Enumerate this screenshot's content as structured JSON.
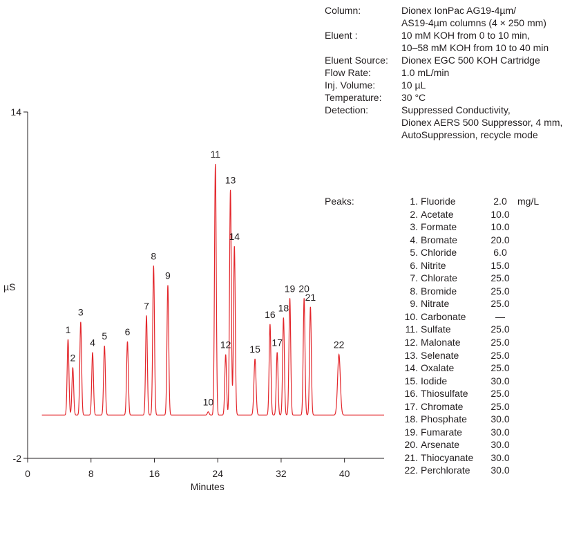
{
  "chart_data": {
    "type": "line",
    "xlabel": "Minutes",
    "ylabel": "µS",
    "xlim": [
      0,
      45
    ],
    "ylim": [
      -2,
      14
    ],
    "x_ticks": [
      "0",
      "8",
      "16",
      "24",
      "32",
      "40"
    ],
    "y_ticks": [
      "14",
      "-2"
    ],
    "baseline": 0.0,
    "line_color": "#e3262b",
    "peaks": [
      {
        "label": "1",
        "t": 5.1,
        "h": 3.5
      },
      {
        "label": "2",
        "t": 5.7,
        "h": 2.2
      },
      {
        "label": "3",
        "t": 6.7,
        "h": 4.3
      },
      {
        "label": "4",
        "t": 8.2,
        "h": 2.9
      },
      {
        "label": "5",
        "t": 9.7,
        "h": 3.2
      },
      {
        "label": "6",
        "t": 12.6,
        "h": 3.4
      },
      {
        "label": "7",
        "t": 15.0,
        "h": 4.6
      },
      {
        "label": "8",
        "t": 15.9,
        "h": 6.9
      },
      {
        "label": "9",
        "t": 17.7,
        "h": 6.0
      },
      {
        "label": "10",
        "t": 22.8,
        "h": 0.15
      },
      {
        "label": "11",
        "t": 23.7,
        "h": 11.6
      },
      {
        "label": "12",
        "t": 25.0,
        "h": 2.8
      },
      {
        "label": "13",
        "t": 25.6,
        "h": 10.4
      },
      {
        "label": "14",
        "t": 26.1,
        "h": 7.8
      },
      {
        "label": "15",
        "t": 28.7,
        "h": 2.6
      },
      {
        "label": "16",
        "t": 30.6,
        "h": 4.2
      },
      {
        "label": "17",
        "t": 31.5,
        "h": 2.9
      },
      {
        "label": "18",
        "t": 32.3,
        "h": 4.5
      },
      {
        "label": "19",
        "t": 33.1,
        "h": 5.4
      },
      {
        "label": "20",
        "t": 34.9,
        "h": 5.4
      },
      {
        "label": "21",
        "t": 35.7,
        "h": 5.0
      },
      {
        "label": "22",
        "t": 39.3,
        "h": 2.8
      }
    ]
  },
  "conditions": [
    {
      "label": "Column:",
      "values": [
        "Dionex IonPac AG19-4µm/",
        "AS19-4µm columns (4 × 250 mm)"
      ]
    },
    {
      "label": "Eluent :",
      "values": [
        "10 mM KOH from 0 to 10 min,",
        "10–58 mM KOH from 10 to 40 min"
      ]
    },
    {
      "label": "Eluent Source:",
      "values": [
        "Dionex EGC 500 KOH Cartridge"
      ]
    },
    {
      "label": "Flow Rate:",
      "values": [
        "1.0 mL/min"
      ]
    },
    {
      "label": "Inj. Volume:",
      "values": [
        "10 µL"
      ]
    },
    {
      "label": "Temperature:",
      "values": [
        "30 °C"
      ]
    },
    {
      "label": "Detection:",
      "values": [
        "Suppressed Conductivity,",
        "Dionex AERS 500 Suppressor, 4 mm,",
        "AutoSuppression, recycle mode"
      ]
    }
  ],
  "peak_table": {
    "label": "Peaks:",
    "unit": "mg/L",
    "items": [
      {
        "num": "1.",
        "name": "Fluoride",
        "conc": "2.0"
      },
      {
        "num": "2.",
        "name": "Acetate",
        "conc": "10.0"
      },
      {
        "num": "3.",
        "name": "Formate",
        "conc": "10.0"
      },
      {
        "num": "4.",
        "name": "Bromate",
        "conc": "20.0"
      },
      {
        "num": "5.",
        "name": "Chloride",
        "conc": "6.0"
      },
      {
        "num": "6.",
        "name": "Nitrite",
        "conc": "15.0"
      },
      {
        "num": "7.",
        "name": "Chlorate",
        "conc": "25.0"
      },
      {
        "num": "8.",
        "name": "Bromide",
        "conc": "25.0"
      },
      {
        "num": "9.",
        "name": "Nitrate",
        "conc": "25.0"
      },
      {
        "num": "10.",
        "name": "Carbonate",
        "conc": "—"
      },
      {
        "num": "11.",
        "name": "Sulfate",
        "conc": "25.0"
      },
      {
        "num": "12.",
        "name": "Malonate",
        "conc": "25.0"
      },
      {
        "num": "13.",
        "name": "Selenate",
        "conc": "25.0"
      },
      {
        "num": "14.",
        "name": "Oxalate",
        "conc": "25.0"
      },
      {
        "num": "15.",
        "name": "Iodide",
        "conc": "30.0"
      },
      {
        "num": "16.",
        "name": "Thiosulfate",
        "conc": "25.0"
      },
      {
        "num": "17.",
        "name": "Chromate",
        "conc": "25.0"
      },
      {
        "num": "18.",
        "name": "Phosphate",
        "conc": "30.0"
      },
      {
        "num": "19.",
        "name": "Fumarate",
        "conc": "30.0"
      },
      {
        "num": "20.",
        "name": "Arsenate",
        "conc": "30.0"
      },
      {
        "num": "21.",
        "name": "Thiocyanate",
        "conc": "30.0"
      },
      {
        "num": "22.",
        "name": "Perchlorate",
        "conc": "30.0"
      }
    ]
  }
}
